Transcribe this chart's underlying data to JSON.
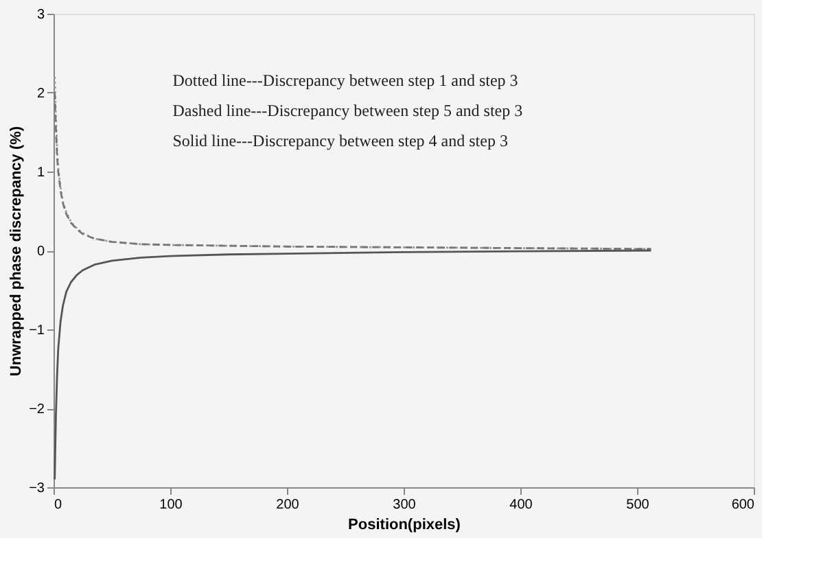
{
  "chart_data": {
    "type": "line",
    "xlabel": "Position(pixels)",
    "ylabel": "Unwrapped phase discrepancy (%)",
    "annotations": [
      "Dotted line---Discrepancy between step 1 and step 3",
      "Dashed line---Discrepancy between step 5 and step 3",
      "Solid line---Discrepancy between step 4 and step 3"
    ],
    "x": [
      1,
      2,
      3,
      4,
      6,
      8,
      11,
      15,
      20,
      25,
      35,
      50,
      75,
      100,
      150,
      200,
      300,
      400,
      512
    ],
    "series": [
      {
        "color": "#999999",
        "line_style": "dotted",
        "values": [
          2.2,
          1.7,
          1.3,
          1.05,
          0.8,
          0.62,
          0.48,
          0.36,
          0.28,
          0.22,
          0.15,
          0.11,
          0.08,
          0.07,
          0.06,
          0.05,
          0.04,
          0.03,
          0.02
        ]
      },
      {
        "color": "#777777",
        "line_style": "dashed",
        "values": [
          2.0,
          1.55,
          1.2,
          1.0,
          0.76,
          0.6,
          0.46,
          0.35,
          0.27,
          0.21,
          0.15,
          0.11,
          0.08,
          0.07,
          0.06,
          0.05,
          0.04,
          0.03,
          0.02
        ]
      },
      {
        "color": "#555555",
        "line_style": "solid",
        "values": [
          -2.9,
          -2.1,
          -1.6,
          -1.25,
          -0.9,
          -0.7,
          -0.52,
          -0.4,
          -0.31,
          -0.25,
          -0.18,
          -0.13,
          -0.09,
          -0.07,
          -0.05,
          -0.04,
          -0.02,
          -0.01,
          0.0
        ]
      }
    ],
    "xlim": [
      0,
      600
    ],
    "xticks": [
      0,
      100,
      200,
      300,
      400,
      500,
      600
    ],
    "ylim": [
      -3,
      3
    ],
    "yticks": [
      -3,
      -2,
      -1,
      0,
      1,
      2,
      3
    ],
    "grid": false
  }
}
